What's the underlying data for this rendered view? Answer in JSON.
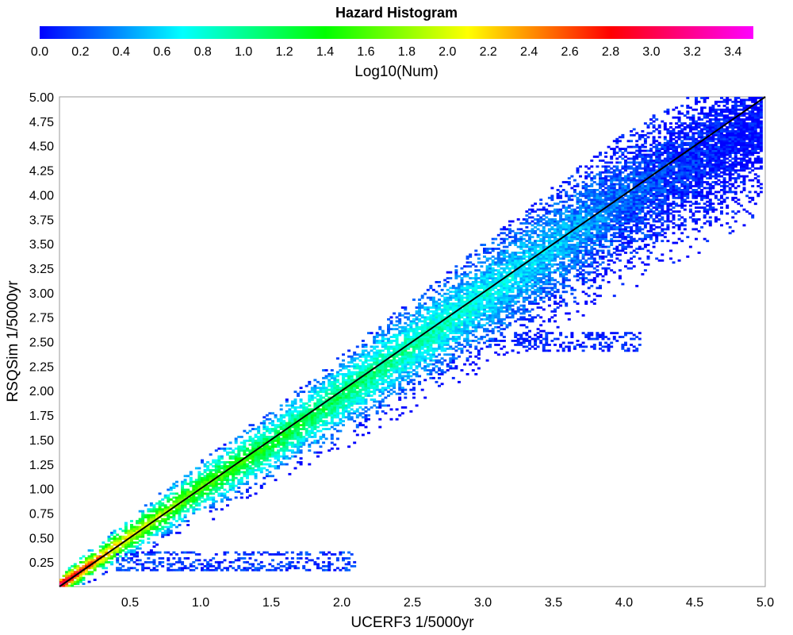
{
  "chart_data": {
    "type": "heatmap",
    "title": "Hazard Histogram",
    "colorbar": {
      "label": "Log10(Num)",
      "min": 0.0,
      "max": 3.5,
      "ticks": [
        "0.0",
        "0.2",
        "0.4",
        "0.6",
        "0.8",
        "1.0",
        "1.2",
        "1.4",
        "1.6",
        "1.8",
        "2.0",
        "2.2",
        "2.4",
        "2.6",
        "2.8",
        "3.0",
        "3.2",
        "3.4"
      ],
      "colors": [
        "#0000ff",
        "#00ffff",
        "#00ff00",
        "#ffff00",
        "#ff0000",
        "#ff00ff"
      ]
    },
    "xlabel": "UCERF3 1/5000yr",
    "ylabel": "RSQSim 1/5000yr",
    "xlim": [
      0.0,
      5.0
    ],
    "ylim": [
      0.0,
      5.0
    ],
    "xticks": [
      "0.5",
      "1.0",
      "1.5",
      "2.0",
      "2.5",
      "3.0",
      "3.5",
      "4.0",
      "4.5",
      "5.0"
    ],
    "yticks": [
      "0.25",
      "0.50",
      "0.75",
      "1.00",
      "1.25",
      "1.50",
      "1.75",
      "2.00",
      "2.25",
      "2.50",
      "2.75",
      "3.00",
      "3.25",
      "3.50",
      "3.75",
      "4.00",
      "4.25",
      "4.50",
      "4.75",
      "5.00"
    ],
    "reference_line": {
      "from": [
        0,
        0
      ],
      "to": [
        5,
        5
      ],
      "color": "#000000"
    },
    "bin_size": 0.02,
    "density_ridge": [
      {
        "x": 0.05,
        "y": 0.05,
        "log10num": 3.3
      },
      {
        "x": 0.25,
        "y": 0.25,
        "log10num": 2.7
      },
      {
        "x": 0.5,
        "y": 0.5,
        "log10num": 2.2
      },
      {
        "x": 0.75,
        "y": 0.75,
        "log10num": 1.9
      },
      {
        "x": 1.0,
        "y": 1.0,
        "log10num": 1.7
      },
      {
        "x": 1.5,
        "y": 1.45,
        "log10num": 1.4
      },
      {
        "x": 2.0,
        "y": 1.95,
        "log10num": 1.2
      },
      {
        "x": 2.5,
        "y": 2.45,
        "log10num": 1.0
      },
      {
        "x": 3.0,
        "y": 2.95,
        "log10num": 0.8
      },
      {
        "x": 3.5,
        "y": 3.45,
        "log10num": 0.6
      },
      {
        "x": 4.0,
        "y": 3.95,
        "log10num": 0.3
      },
      {
        "x": 4.5,
        "y": 4.35,
        "log10num": 0.1
      },
      {
        "x": 4.9,
        "y": 4.65,
        "log10num": 0.0
      }
    ],
    "secondary_clusters": [
      {
        "x_range": [
          0.4,
          2.1
        ],
        "y_range": [
          0.15,
          0.35
        ],
        "log10num": 0.3
      },
      {
        "x_range": [
          3.2,
          4.1
        ],
        "y_range": [
          2.4,
          2.6
        ],
        "log10num": 0.2
      }
    ]
  }
}
